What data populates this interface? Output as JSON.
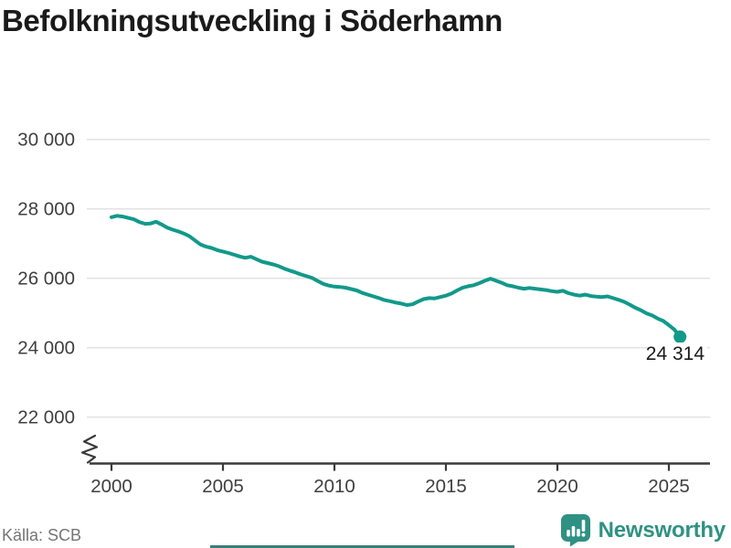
{
  "title": "Befolkningsutveckling i Söderhamn",
  "footer": {
    "source": "Källa: SCB",
    "brand": "Newsworthy"
  },
  "colors": {
    "line": "#12998a",
    "end_dot": "#12998a",
    "grid": "#e3e3e3",
    "axis": "#3a3a3a",
    "tick_text": "#3f3f3f",
    "title_text": "#1a1a1a",
    "end_label_text": "#1a1a1a",
    "source_text": "#757575",
    "brand": "#2f9183",
    "bottom_bar": "#3a7f78"
  },
  "chart_data": {
    "type": "line",
    "title": "Befolkningsutveckling i Söderhamn",
    "series_name": "Befolkning i Söderhamn",
    "xlabel": "",
    "ylabel": "",
    "legend": "none",
    "grid": "horizontal",
    "axis_break": true,
    "ylim": [
      22000,
      30000
    ],
    "xlim": [
      1999,
      2026.9
    ],
    "xticks": {
      "values": [
        2000,
        2005,
        2010,
        2015,
        2020,
        2025
      ],
      "labels": [
        "2000",
        "2005",
        "2010",
        "2015",
        "2020",
        "2025"
      ]
    },
    "yticks": {
      "values": [
        30000,
        28000,
        26000,
        24000,
        22000
      ],
      "labels": [
        "30 000",
        "28 000",
        "26 000",
        "24 000",
        "22 000"
      ]
    },
    "x": [
      2000,
      2000.25,
      2000.5,
      2000.75,
      2001,
      2001.25,
      2001.5,
      2001.75,
      2002,
      2002.25,
      2002.5,
      2002.75,
      2003,
      2003.25,
      2003.5,
      2003.75,
      2004,
      2004.25,
      2004.5,
      2004.75,
      2005,
      2005.25,
      2005.5,
      2005.75,
      2006,
      2006.25,
      2006.5,
      2006.75,
      2007,
      2007.25,
      2007.5,
      2007.75,
      2008,
      2008.25,
      2008.5,
      2008.75,
      2009,
      2009.25,
      2009.5,
      2009.75,
      2010,
      2010.25,
      2010.5,
      2010.75,
      2011,
      2011.25,
      2011.5,
      2011.75,
      2012,
      2012.25,
      2012.5,
      2012.75,
      2013,
      2013.25,
      2013.5,
      2013.75,
      2014,
      2014.25,
      2014.5,
      2014.75,
      2015,
      2015.25,
      2015.5,
      2015.75,
      2016,
      2016.25,
      2016.5,
      2016.75,
      2017,
      2017.25,
      2017.5,
      2017.75,
      2018,
      2018.25,
      2018.5,
      2018.75,
      2019,
      2019.25,
      2019.5,
      2019.75,
      2020,
      2020.25,
      2020.5,
      2020.75,
      2021,
      2021.25,
      2021.5,
      2021.75,
      2022,
      2022.25,
      2022.5,
      2022.75,
      2023,
      2023.25,
      2023.5,
      2023.75,
      2024,
      2024.25,
      2024.5,
      2024.75,
      2025,
      2025.25,
      2025.5
    ],
    "values": [
      27760,
      27800,
      27780,
      27740,
      27700,
      27620,
      27570,
      27580,
      27630,
      27550,
      27460,
      27400,
      27350,
      27290,
      27210,
      27090,
      26970,
      26910,
      26870,
      26810,
      26770,
      26730,
      26680,
      26630,
      26590,
      26620,
      26550,
      26480,
      26440,
      26400,
      26350,
      26280,
      26220,
      26170,
      26110,
      26060,
      26010,
      25920,
      25840,
      25790,
      25760,
      25750,
      25730,
      25690,
      25650,
      25580,
      25530,
      25480,
      25430,
      25370,
      25340,
      25300,
      25270,
      25230,
      25250,
      25330,
      25400,
      25430,
      25420,
      25460,
      25500,
      25560,
      25650,
      25730,
      25770,
      25800,
      25860,
      25930,
      25990,
      25930,
      25870,
      25800,
      25770,
      25730,
      25700,
      25720,
      25700,
      25680,
      25660,
      25630,
      25610,
      25640,
      25570,
      25530,
      25500,
      25530,
      25490,
      25470,
      25460,
      25480,
      25430,
      25380,
      25320,
      25240,
      25150,
      25080,
      24990,
      24930,
      24840,
      24770,
      24650,
      24520,
      24314
    ],
    "end_point": {
      "x": 2025.5,
      "value": 24314,
      "label": "24 314"
    }
  }
}
